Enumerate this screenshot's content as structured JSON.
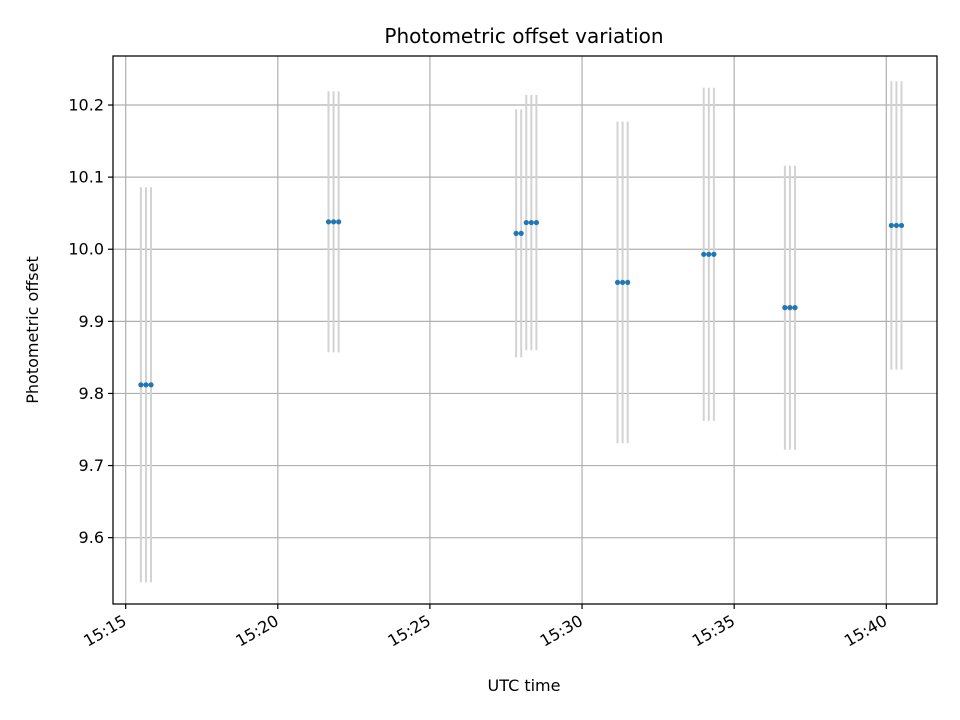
{
  "chart_data": {
    "type": "scatter",
    "title": "Photometric offset variation",
    "xlabel": "UTC time",
    "ylabel": "Photometric offset",
    "xlim": [
      "15:14:35",
      "15:41:40"
    ],
    "ylim": [
      9.508,
      10.268
    ],
    "x_ticks": [
      "15:15",
      "15:20",
      "15:25",
      "15:30",
      "15:35",
      "15:40"
    ],
    "y_ticks": [
      "9.6",
      "9.7",
      "9.8",
      "9.9",
      "10.0",
      "10.1",
      "10.2"
    ],
    "grid": true,
    "colors": {
      "points": "#1f77b4",
      "error_bars": "#d3d3d3",
      "grid": "#b0b0b0"
    },
    "points": [
      {
        "x": "15:15:30",
        "y": 9.812,
        "err": 0.274
      },
      {
        "x": "15:15:40",
        "y": 9.812,
        "err": 0.274
      },
      {
        "x": "15:15:50",
        "y": 9.812,
        "err": 0.274
      },
      {
        "x": "15:21:40",
        "y": 10.038,
        "err": 0.181
      },
      {
        "x": "15:21:50",
        "y": 10.038,
        "err": 0.181
      },
      {
        "x": "15:22:00",
        "y": 10.038,
        "err": 0.181
      },
      {
        "x": "15:27:50",
        "y": 10.022,
        "err": 0.172
      },
      {
        "x": "15:28:00",
        "y": 10.022,
        "err": 0.172
      },
      {
        "x": "15:28:10",
        "y": 10.037,
        "err": 0.177
      },
      {
        "x": "15:28:20",
        "y": 10.037,
        "err": 0.177
      },
      {
        "x": "15:28:30",
        "y": 10.037,
        "err": 0.177
      },
      {
        "x": "15:31:10",
        "y": 9.954,
        "err": 0.223
      },
      {
        "x": "15:31:20",
        "y": 9.954,
        "err": 0.223
      },
      {
        "x": "15:31:30",
        "y": 9.954,
        "err": 0.223
      },
      {
        "x": "15:34:00",
        "y": 9.993,
        "err": 0.231
      },
      {
        "x": "15:34:10",
        "y": 9.993,
        "err": 0.231
      },
      {
        "x": "15:34:20",
        "y": 9.993,
        "err": 0.231
      },
      {
        "x": "15:36:40",
        "y": 9.919,
        "err": 0.197
      },
      {
        "x": "15:36:50",
        "y": 9.919,
        "err": 0.197
      },
      {
        "x": "15:37:00",
        "y": 9.919,
        "err": 0.197
      },
      {
        "x": "15:40:10",
        "y": 10.033,
        "err": 0.2
      },
      {
        "x": "15:40:20",
        "y": 10.033,
        "err": 0.2
      },
      {
        "x": "15:40:30",
        "y": 10.033,
        "err": 0.2
      }
    ]
  }
}
